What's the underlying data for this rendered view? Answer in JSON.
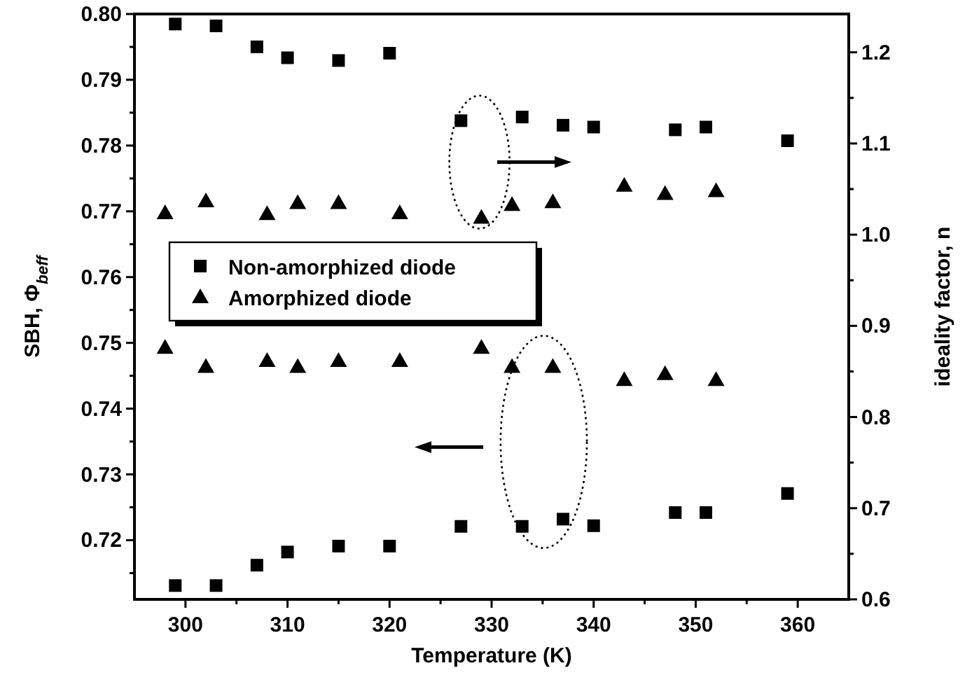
{
  "chart_data": {
    "type": "scatter",
    "xlabel": "Temperature (K)",
    "ylabel": "SBH, Φ$_{beff}$",
    "y2label": "ideality factor, n",
    "xlim": [
      295,
      365
    ],
    "xticks": [
      300,
      {
        "value": 305,
        "label": null
      },
      310,
      {
        "value": 315,
        "label": null
      },
      320,
      {
        "value": 325,
        "label": null
      },
      330,
      {
        "value": 335,
        "label": null
      },
      340,
      {
        "value": 345,
        "label": null
      },
      350,
      {
        "value": 355,
        "label": null
      },
      360
    ],
    "ylim": [
      0.711,
      0.8
    ],
    "yticks": [
      {
        "value": 0.715,
        "label": null
      },
      {
        "value": 0.72,
        "label": "0.72"
      },
      {
        "value": 0.725,
        "label": null
      },
      {
        "value": 0.73,
        "label": "0.73"
      },
      {
        "value": 0.735,
        "label": null
      },
      {
        "value": 0.74,
        "label": "0.74"
      },
      {
        "value": 0.745,
        "label": null
      },
      {
        "value": 0.75,
        "label": "0.75"
      },
      {
        "value": 0.755,
        "label": null
      },
      {
        "value": 0.76,
        "label": "0.76"
      },
      {
        "value": 0.765,
        "label": null
      },
      {
        "value": 0.77,
        "label": "0.77"
      },
      {
        "value": 0.775,
        "label": null
      },
      {
        "value": 0.78,
        "label": "0.78"
      },
      {
        "value": 0.785,
        "label": null
      },
      {
        "value": 0.79,
        "label": "0.79"
      },
      {
        "value": 0.795,
        "label": null
      },
      {
        "value": 0.8,
        "label": "0.80"
      }
    ],
    "y2lim": [
      0.6,
      1.242
    ],
    "y2ticks": [
      {
        "value": 0.6,
        "label": "0.6"
      },
      {
        "value": 0.65,
        "label": null
      },
      {
        "value": 0.7,
        "label": "0.7"
      },
      {
        "value": 0.75,
        "label": null
      },
      {
        "value": 0.8,
        "label": "0.8"
      },
      {
        "value": 0.85,
        "label": null
      },
      {
        "value": 0.9,
        "label": "0.9"
      },
      {
        "value": 0.95,
        "label": null
      },
      {
        "value": 1.0,
        "label": "1.0"
      },
      {
        "value": 1.05,
        "label": null
      },
      {
        "value": 1.1,
        "label": "1.1"
      },
      {
        "value": 1.15,
        "label": null
      },
      {
        "value": 1.2,
        "label": "1.2"
      }
    ],
    "legend": "left",
    "series": [
      {
        "name": "Non-amorphized diode",
        "color": "#000000",
        "marker": "square",
        "x": [
          299,
          303,
          307,
          310,
          315,
          320,
          327,
          333,
          337,
          340,
          348,
          351,
          359
        ],
        "values": [
          0.7131,
          0.7131,
          0.7162,
          0.7182,
          0.7191,
          0.7191,
          0.7221,
          0.7221,
          0.7232,
          0.7222,
          0.7242,
          0.7242,
          0.7271
        ]
      },
      {
        "name": "Amorphized diode",
        "color": "#000000",
        "marker": "triangle",
        "x": [
          298,
          302,
          308,
          311,
          315,
          321,
          329,
          332,
          336,
          343,
          347,
          352
        ],
        "values": [
          0.7493,
          0.7464,
          0.7473,
          0.7464,
          0.7473,
          0.7473,
          0.7493,
          0.7464,
          0.7464,
          0.7444,
          0.7453,
          0.7444
        ]
      },
      {
        "color": "#000000",
        "marker": "square",
        "axis": "y2",
        "x": [
          299,
          303,
          307,
          310,
          315,
          320,
          327,
          333,
          337,
          340,
          348,
          351,
          359
        ],
        "values": [
          1.231,
          1.229,
          1.206,
          1.194,
          1.191,
          1.199,
          1.125,
          1.129,
          1.12,
          1.118,
          1.115,
          1.118,
          1.103
        ]
      },
      {
        "color": "#000000",
        "marker": "triangle",
        "axis": "y2",
        "x": [
          298,
          302,
          308,
          311,
          315,
          321,
          329,
          332,
          336,
          343,
          347,
          352
        ],
        "values": [
          1.024,
          1.037,
          1.023,
          1.035,
          1.035,
          1.024,
          1.019,
          1.033,
          1.036,
          1.054,
          1.045,
          1.048
        ]
      }
    ]
  }
}
